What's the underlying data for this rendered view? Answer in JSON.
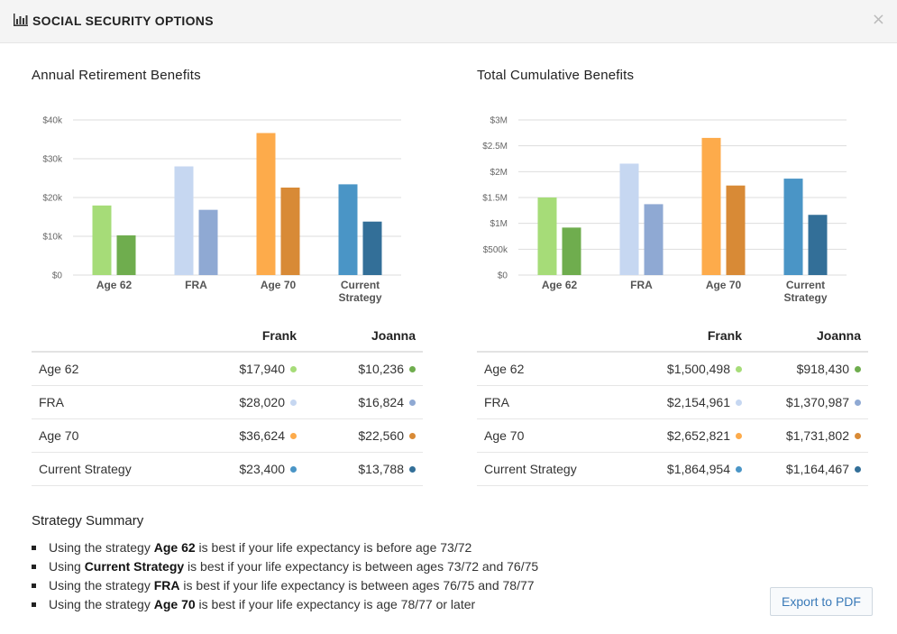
{
  "header": {
    "title": "SOCIAL SECURITY OPTIONS",
    "close_label": "×"
  },
  "annual": {
    "title": "Annual Retirement Benefits",
    "table": {
      "headers": [
        "",
        "Frank",
        "Joanna"
      ],
      "rows": [
        {
          "label": "Age 62",
          "frank": "$17,940",
          "joanna": "$10,236"
        },
        {
          "label": "FRA",
          "frank": "$28,020",
          "joanna": "$16,824"
        },
        {
          "label": "Age 70",
          "frank": "$36,624",
          "joanna": "$22,560"
        },
        {
          "label": "Current Strategy",
          "frank": "$23,400",
          "joanna": "$13,788"
        }
      ]
    }
  },
  "cumulative": {
    "title": "Total Cumulative Benefits",
    "table": {
      "headers": [
        "",
        "Frank",
        "Joanna"
      ],
      "rows": [
        {
          "label": "Age 62",
          "frank": "$1,500,498",
          "joanna": "$918,430"
        },
        {
          "label": "FRA",
          "frank": "$2,154,961",
          "joanna": "$1,370,987"
        },
        {
          "label": "Age 70",
          "frank": "$2,652,821",
          "joanna": "$1,731,802"
        },
        {
          "label": "Current Strategy",
          "frank": "$1,864,954",
          "joanna": "$1,164,467"
        }
      ]
    }
  },
  "colors": {
    "age62": [
      "#a6dc78",
      "#6fad4e"
    ],
    "fra": [
      "#c6d7f1",
      "#8fa9d3"
    ],
    "age70": [
      "#fdab4b",
      "#d88a36"
    ],
    "current": [
      "#4a95c6",
      "#336f98"
    ],
    "gridline": "#dddddd",
    "export_text": "#3a7ab8"
  },
  "chart_data": [
    {
      "type": "bar",
      "title": "Annual Retirement Benefits",
      "categories": [
        "Age 62",
        "FRA",
        "Age 70",
        "Current Strategy"
      ],
      "category_lines": [
        [
          "Age 62"
        ],
        [
          "FRA"
        ],
        [
          "Age 70"
        ],
        [
          "Current",
          "Strategy"
        ]
      ],
      "series": [
        {
          "name": "Frank",
          "values": [
            17940,
            28020,
            36624,
            23400
          ]
        },
        {
          "name": "Joanna",
          "values": [
            10236,
            16824,
            22560,
            13788
          ]
        }
      ],
      "ylim": [
        0,
        40000
      ],
      "yticks": [
        0,
        10000,
        20000,
        30000,
        40000
      ],
      "ytick_labels": [
        "$0",
        "$10k",
        "$20k",
        "$30k",
        "$40k"
      ],
      "grid": true
    },
    {
      "type": "bar",
      "title": "Total Cumulative Benefits",
      "categories": [
        "Age 62",
        "FRA",
        "Age 70",
        "Current Strategy"
      ],
      "category_lines": [
        [
          "Age 62"
        ],
        [
          "FRA"
        ],
        [
          "Age 70"
        ],
        [
          "Current",
          "Strategy"
        ]
      ],
      "series": [
        {
          "name": "Frank",
          "values": [
            1500498,
            2154961,
            2652821,
            1864954
          ]
        },
        {
          "name": "Joanna",
          "values": [
            918430,
            1370987,
            1731802,
            1164467
          ]
        }
      ],
      "ylim": [
        0,
        3000000
      ],
      "yticks": [
        0,
        500000,
        1000000,
        1500000,
        2000000,
        2500000,
        3000000
      ],
      "ytick_labels": [
        "$0",
        "$500k",
        "$1M",
        "$1.5M",
        "$2M",
        "$2.5M",
        "$3M"
      ],
      "grid": true
    }
  ],
  "summary": {
    "title": "Strategy Summary",
    "items": [
      {
        "pre": "Using the strategy ",
        "bold": "Age 62",
        "post": " is best if your life expectancy is before age 73/72"
      },
      {
        "pre": "Using ",
        "bold": "Current Strategy",
        "post": " is best if your life expectancy is between ages 73/72 and 76/75"
      },
      {
        "pre": "Using the strategy ",
        "bold": "FRA",
        "post": " is best if your life expectancy is between ages 76/75 and 78/77"
      },
      {
        "pre": "Using the strategy ",
        "bold": "Age 70",
        "post": " is best if your life expectancy is age 78/77 or later"
      }
    ]
  },
  "export_button": {
    "label": "Export to PDF"
  }
}
